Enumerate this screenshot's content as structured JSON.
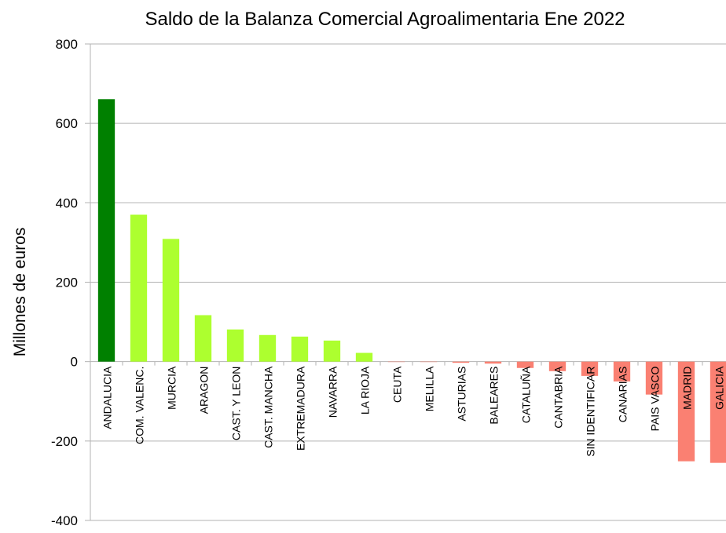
{
  "chart_data": {
    "type": "bar",
    "title": "Saldo de la Balanza Comercial Agroalimentaria Ene 2022",
    "y_label": "Millones de euros",
    "categories": [
      "ANDALUCIA",
      "COM. VALENC.",
      "MURCIA",
      "ARAGON",
      "CAST. Y LEON",
      "CAST. MANCHA",
      "EXTREMADURA",
      "NAVARRA",
      "LA RIOJA",
      "CEUTA",
      "MELILLA",
      "ASTURIAS",
      "BALEARES",
      "CATALUÑA",
      "CANTABRIA",
      "SIN IDENTIFICAR",
      "CANARIAS",
      "PAIS VASCO",
      "MADRID",
      "GALICIA"
    ],
    "values": [
      661,
      370,
      309,
      117,
      81,
      67,
      63,
      53,
      22,
      -1,
      -1,
      -3,
      -5,
      -16,
      -24,
      -36,
      -50,
      -83,
      -251,
      -255
    ],
    "colors": [
      "#008000",
      "#adff2f",
      "#adff2f",
      "#adff2f",
      "#adff2f",
      "#adff2f",
      "#adff2f",
      "#adff2f",
      "#adff2f",
      "#fa8072",
      "#fa8072",
      "#fa8072",
      "#fa8072",
      "#fa8072",
      "#fa8072",
      "#fa8072",
      "#fa8072",
      "#fa8072",
      "#fa8072",
      "#fa8072"
    ],
    "ylim": [
      -400,
      800
    ],
    "yticks": [
      -400,
      -200,
      0,
      200,
      400,
      600,
      800
    ],
    "grid": true
  }
}
